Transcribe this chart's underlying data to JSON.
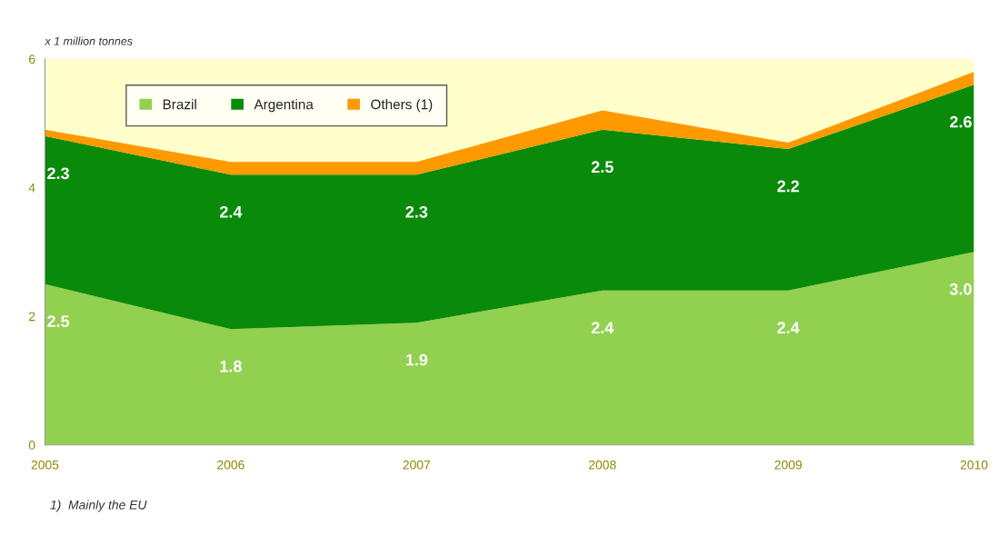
{
  "chart_data": {
    "type": "area",
    "stacked": true,
    "ylabel": "x 1 million tonnes",
    "x": [
      2005,
      2006,
      2007,
      2008,
      2009,
      2010
    ],
    "series": [
      {
        "name": "Brazil",
        "color": "#92d050",
        "values": [
          2.5,
          1.8,
          1.9,
          2.4,
          2.4,
          3.0
        ],
        "value_labels": [
          "2.5",
          "1.8",
          "1.9",
          "2.4",
          "2.4",
          "3.0"
        ]
      },
      {
        "name": "Argentina",
        "color": "#0a8a0a",
        "values": [
          2.3,
          2.4,
          2.3,
          2.5,
          2.2,
          2.6
        ],
        "value_labels": [
          "2.3",
          "2.4",
          "2.3",
          "2.5",
          "2.2",
          "2.6"
        ]
      },
      {
        "name": "Others (1)",
        "color": "#ff9900",
        "values": [
          0.1,
          0.2,
          0.2,
          0.3,
          0.1,
          0.2
        ]
      }
    ],
    "xlim": [
      2005,
      2010
    ],
    "xticks": [
      2005,
      2006,
      2007,
      2008,
      2009,
      2010
    ],
    "ylim": [
      0,
      6
    ],
    "yticks": [
      0,
      2,
      4,
      6
    ],
    "bands": [
      {
        "axis": "y",
        "from": 0,
        "to": 6,
        "color": "#ffffcc"
      }
    ],
    "grid": false,
    "legend": "top left",
    "annotations": [
      "1)  Mainly the EU"
    ]
  }
}
